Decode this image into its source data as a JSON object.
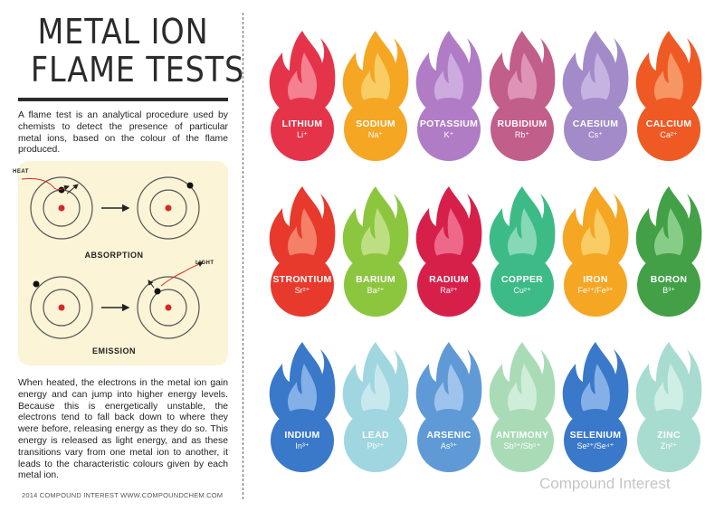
{
  "title": {
    "line1": "METAL ION",
    "line2": "FLAME TESTS"
  },
  "intro": "A flame test is an analytical procedure used by chemists to detect the presence of particular metal ions, based on the colour of the flame produced.",
  "diagram": {
    "absorption_label": "ABSORPTION",
    "emission_label": "EMISSION",
    "heat_label": "HEAT",
    "light_label": "LIGHT"
  },
  "explanation": "When heated, the electrons in the metal ion gain energy and can jump into higher energy levels. Because this is energetically unstable, the electrons tend to fall back down to where they were before, releasing energy as they do so. This energy is released as light energy, and as these transitions vary from one metal ion to another, it leads to the characteristic colours given by each metal ion.",
  "footer": "2014 COMPOUND INTEREST WWW.COMPOUNDCHEM.COM",
  "watermark": "Compound Interest",
  "elements": [
    {
      "name": "LITHIUM",
      "ion": "Li⁺",
      "outer": "#e5344a",
      "inner": "#f58a98",
      "circle": "#e5344a"
    },
    {
      "name": "SODIUM",
      "ion": "Na⁺",
      "outer": "#f5a623",
      "inner": "#fbd06e",
      "circle": "#f5a623"
    },
    {
      "name": "POTASSIUM",
      "ion": "K⁺",
      "outer": "#b07cc6",
      "inner": "#d2b0e0",
      "circle": "#b07cc6"
    },
    {
      "name": "RUBIDIUM",
      "ion": "Rb⁺",
      "outer": "#c25e8a",
      "inner": "#e09ab9",
      "circle": "#c25e8a"
    },
    {
      "name": "CAESIUM",
      "ion": "Cs⁺",
      "outer": "#a38bc9",
      "inner": "#c9b8e3",
      "circle": "#a38bc9"
    },
    {
      "name": "CALCIUM",
      "ion": "Ca²⁺",
      "outer": "#ef5a24",
      "inner": "#f89b6d",
      "circle": "#ef5a24"
    },
    {
      "name": "STRONTIUM",
      "ion": "Sr²⁺",
      "outer": "#e8392d",
      "inner": "#f58a6e",
      "circle": "#e8392d"
    },
    {
      "name": "BARIUM",
      "ion": "Ba²⁺",
      "outer": "#8cc63f",
      "inner": "#c3e08a",
      "circle": "#8cc63f"
    },
    {
      "name": "RADIUM",
      "ion": "Ra²⁺",
      "outer": "#d6204a",
      "inner": "#ef7090",
      "circle": "#d6204a"
    },
    {
      "name": "COPPER",
      "ion": "Cu²⁺",
      "outer": "#3dbb87",
      "inner": "#8fdcbb",
      "circle": "#3dbb87"
    },
    {
      "name": "IRON",
      "ion": "Fe²⁺/Fe³⁺",
      "outer": "#f5a623",
      "inner": "#fbd06e",
      "circle": "#f5a623"
    },
    {
      "name": "BORON",
      "ion": "B³⁺",
      "outer": "#43a047",
      "inner": "#8fd18f",
      "circle": "#43a047"
    },
    {
      "name": "INDIUM",
      "ion": "In³⁺",
      "outer": "#3a78c9",
      "inner": "#8db6ea",
      "circle": "#3a78c9"
    },
    {
      "name": "LEAD",
      "ion": "Pb²⁺",
      "outer": "#9fd6e0",
      "inner": "#cdeaf0",
      "circle": "#9fd6e0"
    },
    {
      "name": "ARSENIC",
      "ion": "As³⁺",
      "outer": "#5f9ad6",
      "inner": "#a5c9ee",
      "circle": "#5f9ad6"
    },
    {
      "name": "ANTIMONY",
      "ion": "Sb³⁺/Sb⁵⁺",
      "outer": "#a9dbb7",
      "inner": "#d3eedb",
      "circle": "#a9dbb7"
    },
    {
      "name": "SELENIUM",
      "ion": "Se²⁺/Se⁴⁺",
      "outer": "#3a78c9",
      "inner": "#8db6ea",
      "circle": "#3a78c9"
    },
    {
      "name": "ZINC",
      "ion": "Zn²⁺",
      "outer": "#a8dcd0",
      "inner": "#d3efe8",
      "circle": "#a8dcd0"
    }
  ]
}
